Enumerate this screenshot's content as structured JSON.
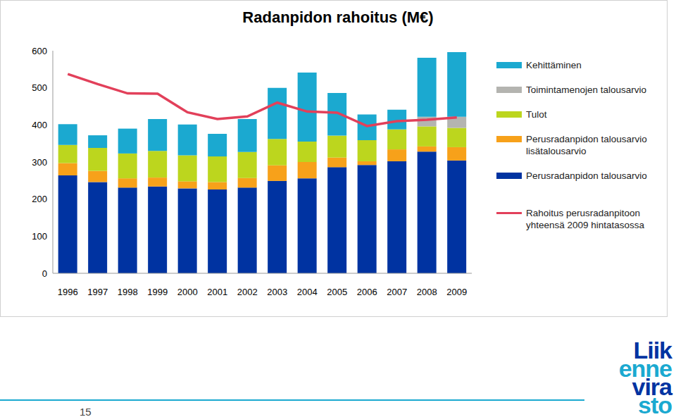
{
  "chart_data": {
    "type": "bar",
    "title": "Radanpidon rahoitus (M€)",
    "stacked": true,
    "grid": false,
    "legend": "right",
    "categories": [
      "1996",
      "1997",
      "1998",
      "1999",
      "2000",
      "2001",
      "2002",
      "2003",
      "2004",
      "2005",
      "2006",
      "2007",
      "2008",
      "2009"
    ],
    "ylim": [
      0,
      600
    ],
    "yticks": [
      0,
      100,
      200,
      300,
      400,
      500,
      600
    ],
    "series": [
      {
        "name": "Perusradanpidon talousarvio",
        "color": "#0033a1",
        "values": [
          264,
          246,
          231,
          234,
          229,
          226,
          231,
          249,
          256,
          286,
          292,
          302,
          328,
          304
        ]
      },
      {
        "name": "Perusradanpidon talousarvio lisätalousarvio",
        "color": "#f7a11a",
        "values": [
          33,
          30,
          25,
          24,
          19,
          20,
          26,
          42,
          44,
          26,
          10,
          32,
          14,
          36
        ]
      },
      {
        "name": "Tulot",
        "color": "#bcd61e",
        "values": [
          49,
          62,
          67,
          72,
          70,
          69,
          70,
          71,
          55,
          59,
          57,
          54,
          54,
          52
        ]
      },
      {
        "name": "Toimintamenojen talousarvio",
        "color": "#b4b4b0",
        "values": [
          0,
          0,
          0,
          0,
          0,
          0,
          0,
          0,
          0,
          0,
          0,
          0,
          26,
          30
        ]
      },
      {
        "name": "Kehittäminen",
        "color": "#1ba9d0",
        "values": [
          56,
          34,
          67,
          86,
          83,
          61,
          89,
          138,
          186,
          115,
          69,
          53,
          159,
          174
        ]
      },
      {
        "name": "Rahoitus perusradanpitoon yhteensä 2009 hintatasossa",
        "type": "line",
        "color": "#e2405a",
        "values": [
          537,
          510,
          485,
          484,
          434,
          416,
          423,
          460,
          436,
          433,
          397,
          410,
          414,
          420
        ]
      }
    ]
  },
  "page": {
    "page_number": "15",
    "logo": [
      "Liik",
      "enne",
      "vira",
      "sto"
    ]
  }
}
